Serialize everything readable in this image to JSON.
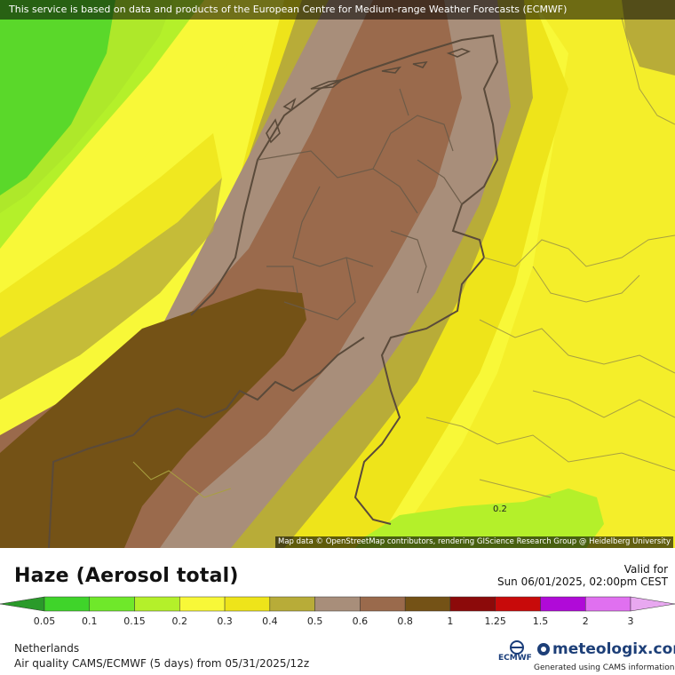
{
  "banner": "This service is based on data and products of the European Centre for Medium-range Weather Forecasts (ECMWF)",
  "attribution": "Map data © OpenStreetMap contributors, rendering GIScience Research Group @ Heidelberg University",
  "contour_label": "0.2",
  "title": "Haze (Aerosol total)",
  "valid_label": "Valid for",
  "valid_date": "Sun 06/01/2025, 02:00pm CEST",
  "region": "Netherlands",
  "model_line": "Air quality CAMS/ECMWF (5 days)  from  05/31/2025/12z",
  "brand": {
    "name": "meteologix.com",
    "ecmwf": "ECMWF",
    "generated": "Generated using CAMS information",
    "ecmwf_icon": "ecmwf-logo-icon",
    "brand_icon": "meteologix-drop-icon"
  },
  "legend": {
    "labels": [
      "0.05",
      "0.1",
      "0.15",
      "0.2",
      "0.3",
      "0.4",
      "0.5",
      "0.6",
      "0.8",
      "1",
      "1.25",
      "1.5",
      "2",
      "3"
    ],
    "colors": [
      "#2a9a2a",
      "#3fd42a",
      "#6fe82a",
      "#b4f02a",
      "#f8f838",
      "#eee41a",
      "#b8ac38",
      "#a88e7a",
      "#9a6a4c",
      "#745216",
      "#8c0a0a",
      "#c80a0a",
      "#b00ad8",
      "#e070f0",
      "#e8a8f0"
    ]
  },
  "map_colors": {
    "green_dark": "#5ad82a",
    "green_light": "#aee82a",
    "yellow": "#f8f838",
    "yellow_dark": "#eee41a",
    "olive": "#b8ac38",
    "tan": "#a88e7a",
    "brown": "#9a6a4c",
    "dark_brown": "#745216"
  }
}
